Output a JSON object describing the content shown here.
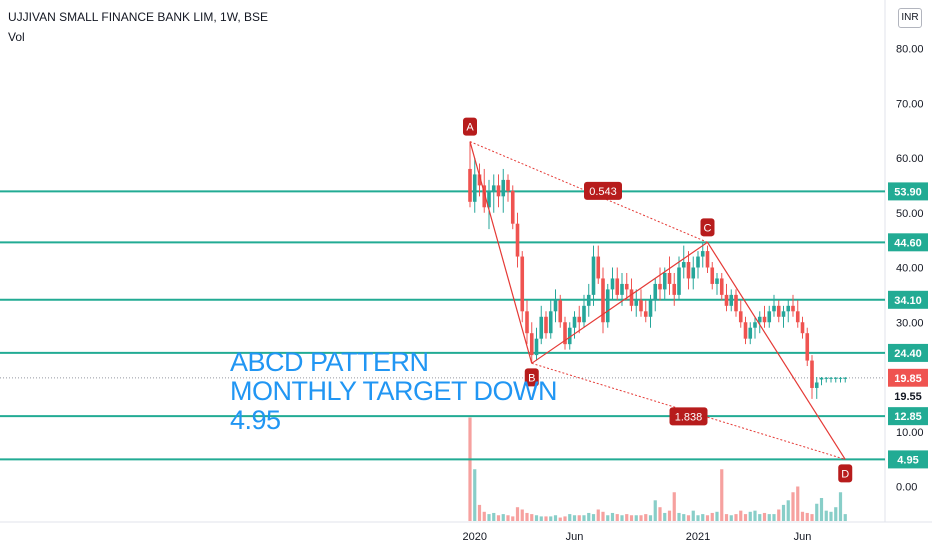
{
  "header": {
    "title": "UJJIVAN SMALL FINANCE BANK LIM, 1W, BSE",
    "volume_label": "Vol",
    "currency": "INR"
  },
  "annotation": {
    "line1": "ABCD PATTERN",
    "line2": "MONTHLY TARGET DOWN",
    "line3": "4.95"
  },
  "colors": {
    "up": "#26a69a",
    "down": "#ef5350",
    "level": "#22ab94",
    "pattern": "#e53935",
    "label_bg": "#b71c1c",
    "annotation": "#2196f3",
    "level_label_bg": "#22ab94",
    "current_price_bg": "#ef5350"
  },
  "chart_data": {
    "type": "candlestick",
    "title": "UJJIVAN SMALL FINANCE BANK LIM, 1W, BSE",
    "y_axis": {
      "ticks": [
        "80.00",
        "70.00",
        "60.00",
        "50.00",
        "40.00",
        "30.00",
        "20.00",
        "10.00",
        "0.00"
      ],
      "tick_values": [
        80,
        70,
        60,
        50,
        40,
        30,
        20,
        10,
        0
      ],
      "range": [
        -7,
        89
      ]
    },
    "x_axis": {
      "tick_labels": [
        "2020",
        "Jun",
        "2021",
        "Jun"
      ],
      "tick_positions_in_bars": [
        1,
        22,
        48,
        70
      ],
      "bar_count": 80
    },
    "horizontal_levels": [
      {
        "label": "53.90",
        "value": 53.9
      },
      {
        "label": "44.60",
        "value": 44.6
      },
      {
        "label": "34.10",
        "value": 34.1
      },
      {
        "label": "24.40",
        "value": 24.4
      },
      {
        "label": "12.85",
        "value": 12.85
      },
      {
        "label": "4.95",
        "value": 4.95
      }
    ],
    "price_labels": [
      {
        "label": "19.85",
        "value": 19.85,
        "kind": "current"
      },
      {
        "label": "19.55",
        "value": 19.55,
        "kind": "plain"
      }
    ],
    "abcd_points": [
      {
        "name": "A",
        "bar": 0,
        "value": 63
      },
      {
        "name": "B",
        "bar": 13,
        "value": 22.5
      },
      {
        "name": "C",
        "bar": 50,
        "value": 44.6
      },
      {
        "name": "D",
        "bar": 79,
        "value": 4.95
      }
    ],
    "ratio_labels": [
      {
        "label": "0.543",
        "bar": 28,
        "value": 54
      },
      {
        "label": "1.838",
        "bar": 46,
        "value": 12.8
      }
    ],
    "candles": [
      [
        58,
        63,
        51,
        52
      ],
      [
        52,
        60,
        50,
        57
      ],
      [
        57,
        59,
        53,
        55
      ],
      [
        55,
        58,
        50,
        51
      ],
      [
        51,
        56,
        47,
        54
      ],
      [
        54,
        57,
        50,
        55
      ],
      [
        55,
        57,
        51,
        53
      ],
      [
        53,
        58,
        50,
        56
      ],
      [
        56,
        57,
        52,
        54
      ],
      [
        54,
        55,
        47,
        48
      ],
      [
        48,
        50,
        40,
        42
      ],
      [
        42,
        43,
        30,
        32
      ],
      [
        32,
        34,
        26,
        28
      ],
      [
        28,
        30,
        22.5,
        24
      ],
      [
        24,
        29,
        23,
        27
      ],
      [
        27,
        33,
        26,
        31
      ],
      [
        31,
        32,
        27,
        28
      ],
      [
        28,
        34,
        27,
        32
      ],
      [
        32,
        36,
        30,
        34
      ],
      [
        34,
        35,
        29,
        30
      ],
      [
        30,
        31,
        25,
        26
      ],
      [
        26,
        30,
        25,
        29
      ],
      [
        29,
        32,
        27,
        31
      ],
      [
        31,
        33,
        28,
        30
      ],
      [
        30,
        35,
        29,
        33
      ],
      [
        33,
        37,
        31,
        35
      ],
      [
        35,
        44,
        33,
        42
      ],
      [
        42,
        44,
        37,
        38
      ],
      [
        38,
        40,
        28,
        30
      ],
      [
        30,
        37,
        29,
        36
      ],
      [
        36,
        40,
        34,
        38
      ],
      [
        38,
        40,
        34,
        35
      ],
      [
        35,
        39,
        33,
        37
      ],
      [
        37,
        39,
        34,
        36
      ],
      [
        36,
        38,
        32,
        33
      ],
      [
        33,
        36,
        31,
        34
      ],
      [
        34,
        36,
        31,
        32
      ],
      [
        32,
        34,
        30,
        31
      ],
      [
        31,
        35,
        29,
        34
      ],
      [
        34,
        38,
        32,
        37
      ],
      [
        37,
        40,
        34,
        36
      ],
      [
        36,
        40,
        34,
        39
      ],
      [
        39,
        42,
        35,
        37
      ],
      [
        37,
        39,
        33,
        35
      ],
      [
        35,
        42,
        34,
        40
      ],
      [
        40,
        44,
        38,
        41
      ],
      [
        41,
        43,
        36,
        38
      ],
      [
        38,
        42,
        36,
        40
      ],
      [
        40,
        43,
        38,
        42
      ],
      [
        42,
        44.6,
        40,
        43
      ],
      [
        43,
        44,
        39,
        40
      ],
      [
        40,
        41,
        36,
        37
      ],
      [
        37,
        39,
        35,
        38
      ],
      [
        38,
        39,
        34,
        35
      ],
      [
        35,
        37,
        32,
        33
      ],
      [
        33,
        36,
        32,
        35
      ],
      [
        35,
        36,
        31,
        32
      ],
      [
        32,
        34,
        29,
        30
      ],
      [
        30,
        31,
        26,
        27
      ],
      [
        27,
        30,
        26,
        29
      ],
      [
        29,
        31,
        27,
        30
      ],
      [
        30,
        32,
        28,
        31
      ],
      [
        31,
        33,
        29,
        30
      ],
      [
        30,
        33,
        29,
        32
      ],
      [
        32,
        35,
        31,
        33
      ],
      [
        33,
        34,
        30,
        31
      ],
      [
        31,
        33,
        29,
        32
      ],
      [
        32,
        34,
        30,
        33
      ],
      [
        33,
        35,
        31,
        32
      ],
      [
        32,
        34,
        29,
        30
      ],
      [
        30,
        31,
        27,
        28
      ],
      [
        28,
        29,
        22,
        23
      ],
      [
        23,
        24,
        16,
        18
      ],
      [
        18,
        20,
        16,
        19
      ],
      [
        19.55,
        20,
        18.5,
        19.85
      ],
      [
        19.85,
        20,
        19,
        19.85
      ],
      [
        19.85,
        20,
        19,
        19.85
      ],
      [
        19.85,
        20,
        19,
        19.85
      ],
      [
        19.85,
        20,
        19,
        19.85
      ],
      [
        19.85,
        20,
        19,
        19.85
      ]
    ],
    "volumes": [
      90,
      45,
      14,
      8,
      6,
      7,
      5,
      6,
      5,
      4,
      12,
      10,
      7,
      6,
      5,
      4,
      4,
      4,
      5,
      3,
      4,
      6,
      5,
      5,
      5,
      7,
      6,
      10,
      8,
      5,
      7,
      6,
      5,
      6,
      5,
      5,
      5,
      6,
      5,
      18,
      12,
      7,
      9,
      25,
      7,
      6,
      5,
      9,
      5,
      6,
      5,
      7,
      8,
      45,
      6,
      5,
      6,
      9,
      6,
      8,
      9,
      6,
      7,
      6,
      6,
      10,
      14,
      18,
      25,
      30,
      8,
      7,
      6,
      15,
      20,
      9,
      8,
      12,
      25,
      6
    ]
  }
}
